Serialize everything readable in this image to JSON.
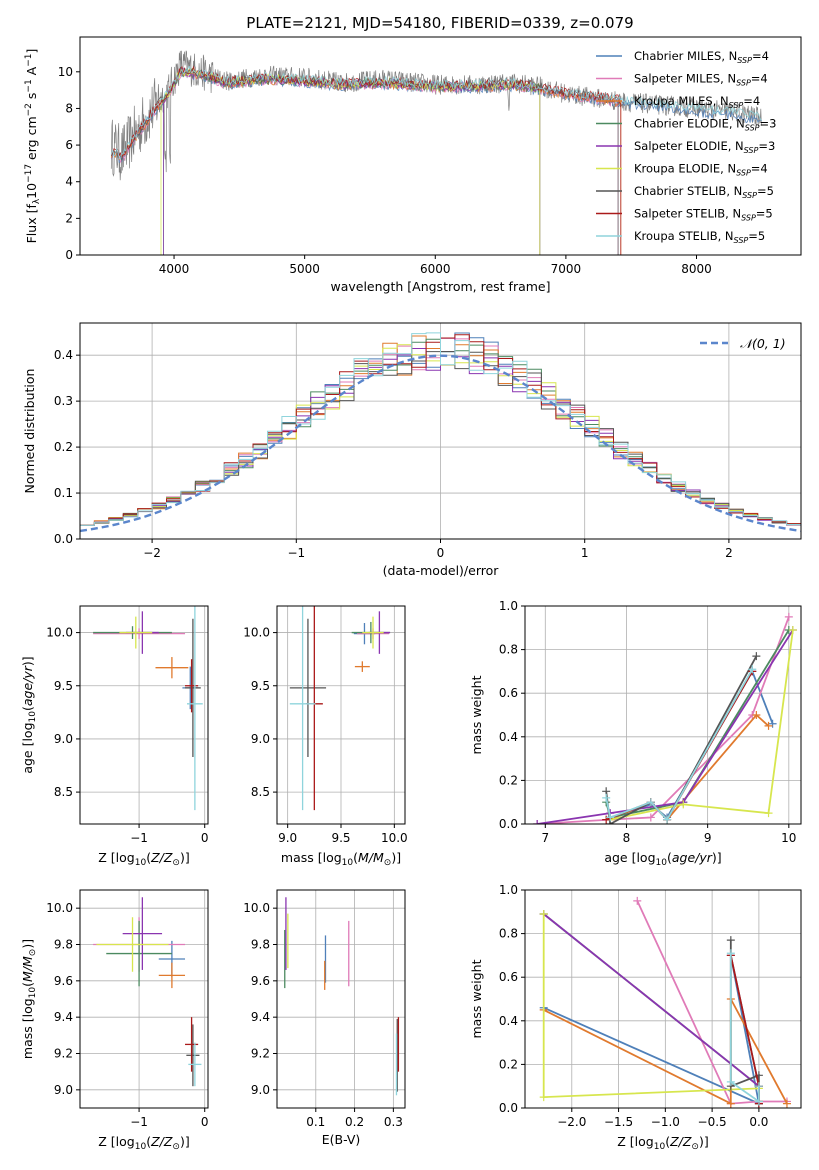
{
  "figure": {
    "title": "PLATE=2121, MJD=54180, FIBERID=0339, z=0.079"
  },
  "models": [
    {
      "name": "Chabrier MILES",
      "nssp": "4",
      "color": "#4f80b9"
    },
    {
      "name": "Salpeter MILES",
      "nssp": "4",
      "color": "#e07bb8"
    },
    {
      "name": "Kroupa MILES",
      "nssp": "4",
      "color": "#e07a2e"
    },
    {
      "name": "Chabrier ELODIE",
      "nssp": "3",
      "color": "#4c8a60"
    },
    {
      "name": "Salpeter ELODIE",
      "nssp": "3",
      "color": "#8a35b0"
    },
    {
      "name": "Kroupa ELODIE",
      "nssp": "4",
      "color": "#d7e64e"
    },
    {
      "name": "Chabrier STELIB",
      "nssp": "5",
      "color": "#555555"
    },
    {
      "name": "Salpeter STELIB",
      "nssp": "5",
      "color": "#aa1a1a"
    },
    {
      "name": "Kroupa STELIB",
      "nssp": "5",
      "color": "#8fd4dc"
    }
  ],
  "chart_data": [
    {
      "id": "spectrum",
      "type": "line",
      "title": "PLATE=2121, MJD=54180, FIBERID=0339, z=0.079",
      "xlabel": "wavelength [Angstrom, rest frame]",
      "ylabel": "Flux [f_λ 10^-17 erg cm^-2 s^-1 A^-1]",
      "xlim": [
        3280,
        8800
      ],
      "ylim": [
        0,
        11.9
      ],
      "xticks": [
        "4000",
        "5000",
        "6000",
        "7000",
        "8000"
      ],
      "yticks": [
        "0",
        "2",
        "4",
        "6",
        "8",
        "10"
      ],
      "data_color": "#808080",
      "data_anchors": [
        [
          3520,
          6.0
        ],
        [
          3600,
          5.5
        ],
        [
          3700,
          6.6
        ],
        [
          3800,
          7.6
        ],
        [
          3900,
          8.6
        ],
        [
          3960,
          9.0
        ],
        [
          4050,
          10.4
        ],
        [
          4200,
          10.0
        ],
        [
          4400,
          9.5
        ],
        [
          4700,
          9.8
        ],
        [
          5000,
          9.7
        ],
        [
          5300,
          9.4
        ],
        [
          5600,
          9.6
        ],
        [
          6000,
          9.3
        ],
        [
          6300,
          9.3
        ],
        [
          6600,
          9.4
        ],
        [
          6800,
          9.2
        ],
        [
          7000,
          8.8
        ],
        [
          7200,
          8.6
        ],
        [
          7400,
          8.4
        ],
        [
          7700,
          8.2
        ],
        [
          8000,
          8.0
        ],
        [
          8300,
          7.8
        ],
        [
          8500,
          7.5
        ]
      ],
      "model_anchors": [
        [
          3520,
          5.6
        ],
        [
          3600,
          5.3
        ],
        [
          3700,
          6.4
        ],
        [
          3800,
          7.4
        ],
        [
          3900,
          8.4
        ],
        [
          3960,
          8.8
        ],
        [
          4050,
          10.0
        ],
        [
          4200,
          9.9
        ],
        [
          4400,
          9.4
        ],
        [
          4700,
          9.6
        ],
        [
          5000,
          9.5
        ],
        [
          5300,
          9.3
        ],
        [
          5600,
          9.4
        ],
        [
          6000,
          9.2
        ],
        [
          6300,
          9.2
        ],
        [
          6600,
          9.3
        ],
        [
          6800,
          9.1
        ],
        [
          7000,
          8.8
        ],
        [
          7200,
          8.6
        ],
        [
          7400,
          8.4
        ],
        [
          7700,
          8.2
        ],
        [
          8000,
          7.9
        ],
        [
          8300,
          7.7
        ],
        [
          8500,
          7.4
        ]
      ],
      "model_ranges": [
        [
          3520,
          8500
        ],
        [
          3520,
          7400
        ],
        [
          3520,
          7420
        ],
        [
          3920,
          6800
        ],
        [
          3920,
          6800
        ],
        [
          3900,
          6800
        ],
        [
          3520,
          7400
        ],
        [
          3520,
          7420
        ],
        [
          3520,
          8500
        ]
      ]
    },
    {
      "id": "residuals",
      "type": "line",
      "xlabel": "(data-model)/error",
      "ylabel": "Normed distribution",
      "xlim": [
        -2.5,
        2.5
      ],
      "ylim": [
        0,
        0.47
      ],
      "xticks": [
        "−2",
        "−1",
        "0",
        "1",
        "2"
      ],
      "yticks": [
        "0.0",
        "0.1",
        "0.2",
        "0.3",
        "0.4"
      ],
      "legend": "𝒩(0, 1)",
      "bin_width": 0.1,
      "bin_start": -2.5
    },
    {
      "id": "age_vs_z",
      "type": "scatter",
      "xlabel": "Z [log10(Z/Z⊙)]",
      "ylabel": "age [log10(age/yr)]",
      "xlim": [
        -1.9,
        0.05
      ],
      "ylim": [
        8.2,
        10.25
      ],
      "xticks": [
        "−1",
        "0"
      ],
      "yticks": [
        "8.5",
        "9.0",
        "9.5",
        "10.0"
      ],
      "points": [
        {
          "m": 0,
          "x": -0.22,
          "y": 9.48,
          "xe": 0.12,
          "ye": 0.2
        },
        {
          "m": 1,
          "x": -1.0,
          "y": 9.99,
          "xe": 0.7,
          "ye": 0.05
        },
        {
          "m": 2,
          "x": -0.5,
          "y": 9.67,
          "xe": 0.25,
          "ye": 0.1
        },
        {
          "m": 3,
          "x": -1.1,
          "y": 10.0,
          "xe": 0.6,
          "ye": 0.06
        },
        {
          "m": 4,
          "x": -0.95,
          "y": 10.0,
          "xe": 0.25,
          "ye": 0.2
        },
        {
          "m": 5,
          "x": -1.05,
          "y": 10.0,
          "xe": 0.25,
          "ye": 0.15
        },
        {
          "m": 6,
          "x": -0.18,
          "y": 9.48,
          "xe": 0.12,
          "ye": 0.65
        },
        {
          "m": 7,
          "x": -0.2,
          "y": 9.5,
          "xe": 0.1,
          "ye": 0.25
        },
        {
          "m": 8,
          "x": -0.15,
          "y": 9.33,
          "xe": 0.12,
          "ye": 1.0
        }
      ]
    },
    {
      "id": "age_vs_mass",
      "type": "scatter",
      "xlabel": "mass [log10(M/M⊙)]",
      "ylabel": "",
      "xlim": [
        8.9,
        10.1
      ],
      "ylim": [
        8.2,
        10.25
      ],
      "xticks": [
        "9.0",
        "9.5",
        "10.0"
      ],
      "yticks": [
        "8.5",
        "9.0",
        "9.5",
        "10.0"
      ],
      "points": [
        {
          "m": 0,
          "x": 9.72,
          "y": 9.99,
          "xe": 0.1,
          "ye": 0.1
        },
        {
          "m": 1,
          "x": 9.8,
          "y": 9.99,
          "xe": 0.15,
          "ye": 0.05
        },
        {
          "m": 2,
          "x": 9.7,
          "y": 9.68,
          "xe": 0.07,
          "ye": 0.05
        },
        {
          "m": 3,
          "x": 9.78,
          "y": 10.0,
          "xe": 0.18,
          "ye": 0.1
        },
        {
          "m": 4,
          "x": 9.86,
          "y": 10.0,
          "xe": 0.1,
          "ye": 0.2
        },
        {
          "m": 5,
          "x": 9.8,
          "y": 10.0,
          "xe": 0.1,
          "ye": 0.15
        },
        {
          "m": 6,
          "x": 9.19,
          "y": 9.48,
          "xe": 0.17,
          "ye": 0.65
        },
        {
          "m": 7,
          "x": 9.25,
          "y": 9.33,
          "xe": 0.08,
          "ye": 1.0
        },
        {
          "m": 8,
          "x": 9.14,
          "y": 9.33,
          "xe": 0.12,
          "ye": 1.0
        }
      ]
    },
    {
      "id": "weight_vs_age",
      "type": "line",
      "xlabel": "age [log10(age/yr)]",
      "ylabel": "mass weight",
      "xlim": [
        6.75,
        10.15
      ],
      "ylim": [
        0,
        1.0
      ],
      "xticks": [
        "7",
        "8",
        "9",
        "10"
      ],
      "yticks": [
        "0.0",
        "0.2",
        "0.4",
        "0.6",
        "0.8",
        "1.0"
      ],
      "series": [
        {
          "m": 0,
          "points": [
            [
              7.8,
              0.03
            ],
            [
              8.3,
              0.09
            ],
            [
              8.5,
              0.03
            ],
            [
              9.55,
              0.7
            ],
            [
              9.8,
              0.46
            ]
          ]
        },
        {
          "m": 1,
          "points": [
            [
              6.9,
              0.0
            ],
            [
              7.8,
              0.02
            ],
            [
              8.3,
              0.03
            ],
            [
              9.55,
              0.5
            ],
            [
              10.0,
              0.95
            ]
          ]
        },
        {
          "m": 2,
          "points": [
            [
              7.8,
              0.02
            ],
            [
              8.3,
              0.1
            ],
            [
              8.5,
              0.02
            ],
            [
              9.6,
              0.5
            ],
            [
              9.75,
              0.45
            ]
          ]
        },
        {
          "m": 3,
          "points": [
            [
              7.75,
              0.1
            ],
            [
              7.8,
              0.03
            ],
            [
              8.7,
              0.1
            ],
            [
              10.0,
              0.89
            ]
          ]
        },
        {
          "m": 4,
          "points": [
            [
              6.9,
              0.0
            ],
            [
              7.8,
              0.05
            ],
            [
              8.7,
              0.1
            ],
            [
              10.05,
              0.89
            ]
          ]
        },
        {
          "m": 5,
          "points": [
            [
              7.8,
              0.02
            ],
            [
              8.7,
              0.09
            ],
            [
              9.75,
              0.05
            ],
            [
              10.05,
              0.89
            ]
          ]
        },
        {
          "m": 6,
          "points": [
            [
              7.75,
              0.15
            ],
            [
              7.8,
              0.0
            ],
            [
              8.3,
              0.1
            ],
            [
              8.5,
              0.02
            ],
            [
              9.6,
              0.77
            ]
          ]
        },
        {
          "m": 7,
          "points": [
            [
              7.75,
              0.02
            ],
            [
              8.3,
              0.1
            ],
            [
              8.5,
              0.02
            ],
            [
              9.55,
              0.7
            ]
          ]
        },
        {
          "m": 8,
          "points": [
            [
              7.75,
              0.12
            ],
            [
              7.8,
              0.03
            ],
            [
              8.3,
              0.1
            ],
            [
              8.5,
              0.02
            ],
            [
              9.55,
              0.71
            ]
          ]
        }
      ]
    },
    {
      "id": "mass_vs_z",
      "type": "scatter",
      "xlabel": "Z [log10(Z/Z⊙)]",
      "ylabel": "mass [log10(M/M⊙)]",
      "xlim": [
        -1.9,
        0.05
      ],
      "ylim": [
        8.9,
        10.1
      ],
      "xticks": [
        "−1",
        "0"
      ],
      "yticks": [
        "9.0",
        "9.2",
        "9.4",
        "9.6",
        "9.8",
        "10.0"
      ],
      "points": [
        {
          "m": 0,
          "x": -0.5,
          "y": 9.72,
          "xe": 0.2,
          "ye": 0.1
        },
        {
          "m": 1,
          "x": -1.0,
          "y": 9.8,
          "xe": 0.7,
          "ye": 0.15
        },
        {
          "m": 2,
          "x": -0.5,
          "y": 9.63,
          "xe": 0.2,
          "ye": 0.07
        },
        {
          "m": 3,
          "x": -1.0,
          "y": 9.75,
          "xe": 0.5,
          "ye": 0.18
        },
        {
          "m": 4,
          "x": -0.95,
          "y": 9.86,
          "xe": 0.3,
          "ye": 0.2
        },
        {
          "m": 5,
          "x": -1.1,
          "y": 9.8,
          "xe": 0.55,
          "ye": 0.15
        },
        {
          "m": 6,
          "x": -0.18,
          "y": 9.19,
          "xe": 0.1,
          "ye": 0.17
        },
        {
          "m": 7,
          "x": -0.2,
          "y": 9.25,
          "xe": 0.1,
          "ye": 0.15
        },
        {
          "m": 8,
          "x": -0.15,
          "y": 9.14,
          "xe": 0.1,
          "ye": 0.12
        }
      ]
    },
    {
      "id": "mass_vs_ebv",
      "type": "scatter",
      "xlabel": "E(B-V)",
      "ylabel": "",
      "xlim": [
        0.0,
        0.33
      ],
      "ylim": [
        8.9,
        10.1
      ],
      "xticks": [
        "0.1",
        "0.2",
        "0.3"
      ],
      "yticks": [
        "9.0",
        "9.2",
        "9.4",
        "9.6",
        "9.8",
        "10.0"
      ],
      "points": [
        {
          "m": 0,
          "x": 0.125,
          "y": 9.72,
          "xe": 0.0,
          "ye": 0.13
        },
        {
          "m": 1,
          "x": 0.185,
          "y": 9.75,
          "xe": 0.0,
          "ye": 0.18
        },
        {
          "m": 2,
          "x": 0.123,
          "y": 9.63,
          "xe": 0.0,
          "ye": 0.08
        },
        {
          "m": 3,
          "x": 0.02,
          "y": 9.72,
          "xe": 0.0,
          "ye": 0.16
        },
        {
          "m": 4,
          "x": 0.023,
          "y": 9.86,
          "xe": 0.0,
          "ye": 0.2
        },
        {
          "m": 5,
          "x": 0.028,
          "y": 9.82,
          "xe": 0.0,
          "ye": 0.15
        },
        {
          "m": 6,
          "x": 0.31,
          "y": 9.19,
          "xe": 0.0,
          "ye": 0.2
        },
        {
          "m": 7,
          "x": 0.313,
          "y": 9.25,
          "xe": 0.0,
          "ye": 0.15
        },
        {
          "m": 8,
          "x": 0.308,
          "y": 9.14,
          "xe": 0.0,
          "ye": 0.17
        }
      ]
    },
    {
      "id": "weight_vs_z",
      "type": "line",
      "xlabel": "Z [log10(Z/Z⊙)]",
      "ylabel": "mass weight",
      "xlim": [
        -2.5,
        0.45
      ],
      "ylim": [
        0,
        1.0
      ],
      "xticks": [
        "−2.0",
        "−1.5",
        "−1.0",
        "−0.5",
        "0.0"
      ],
      "yticks": [
        "0.0",
        "0.2",
        "0.4",
        "0.6",
        "0.8",
        "1.0"
      ],
      "series": [
        {
          "m": 0,
          "points": [
            [
              -2.3,
              0.46
            ],
            [
              0.0,
              0.02
            ],
            [
              -0.3,
              0.7
            ],
            [
              0.0,
              0.1
            ]
          ]
        },
        {
          "m": 1,
          "points": [
            [
              -1.3,
              0.95
            ],
            [
              -0.3,
              0.02
            ],
            [
              0.0,
              0.03
            ],
            [
              0.3,
              0.03
            ]
          ]
        },
        {
          "m": 2,
          "points": [
            [
              -2.3,
              0.45
            ],
            [
              -0.3,
              0.02
            ],
            [
              -0.3,
              0.5
            ],
            [
              0.3,
              0.02
            ]
          ]
        },
        {
          "m": 3,
          "points": [
            [
              -2.3,
              0.89
            ],
            [
              0.0,
              0.1
            ],
            [
              0.0,
              0.03
            ]
          ]
        },
        {
          "m": 4,
          "points": [
            [
              -2.3,
              0.89
            ],
            [
              0.0,
              0.1
            ],
            [
              0.0,
              0.03
            ]
          ]
        },
        {
          "m": 5,
          "points": [
            [
              -2.3,
              0.89
            ],
            [
              -2.3,
              0.05
            ],
            [
              0.0,
              0.09
            ],
            [
              0.0,
              0.03
            ]
          ]
        },
        {
          "m": 6,
          "points": [
            [
              -0.3,
              0.77
            ],
            [
              -0.3,
              0.1
            ],
            [
              0.0,
              0.15
            ],
            [
              0.0,
              0.02
            ]
          ]
        },
        {
          "m": 7,
          "points": [
            [
              -0.3,
              0.7
            ],
            [
              0.0,
              0.1
            ],
            [
              0.0,
              0.02
            ]
          ]
        },
        {
          "m": 8,
          "points": [
            [
              -0.3,
              0.71
            ],
            [
              -0.3,
              0.12
            ],
            [
              0.0,
              0.03
            ],
            [
              0.0,
              0.1
            ]
          ]
        }
      ]
    }
  ]
}
